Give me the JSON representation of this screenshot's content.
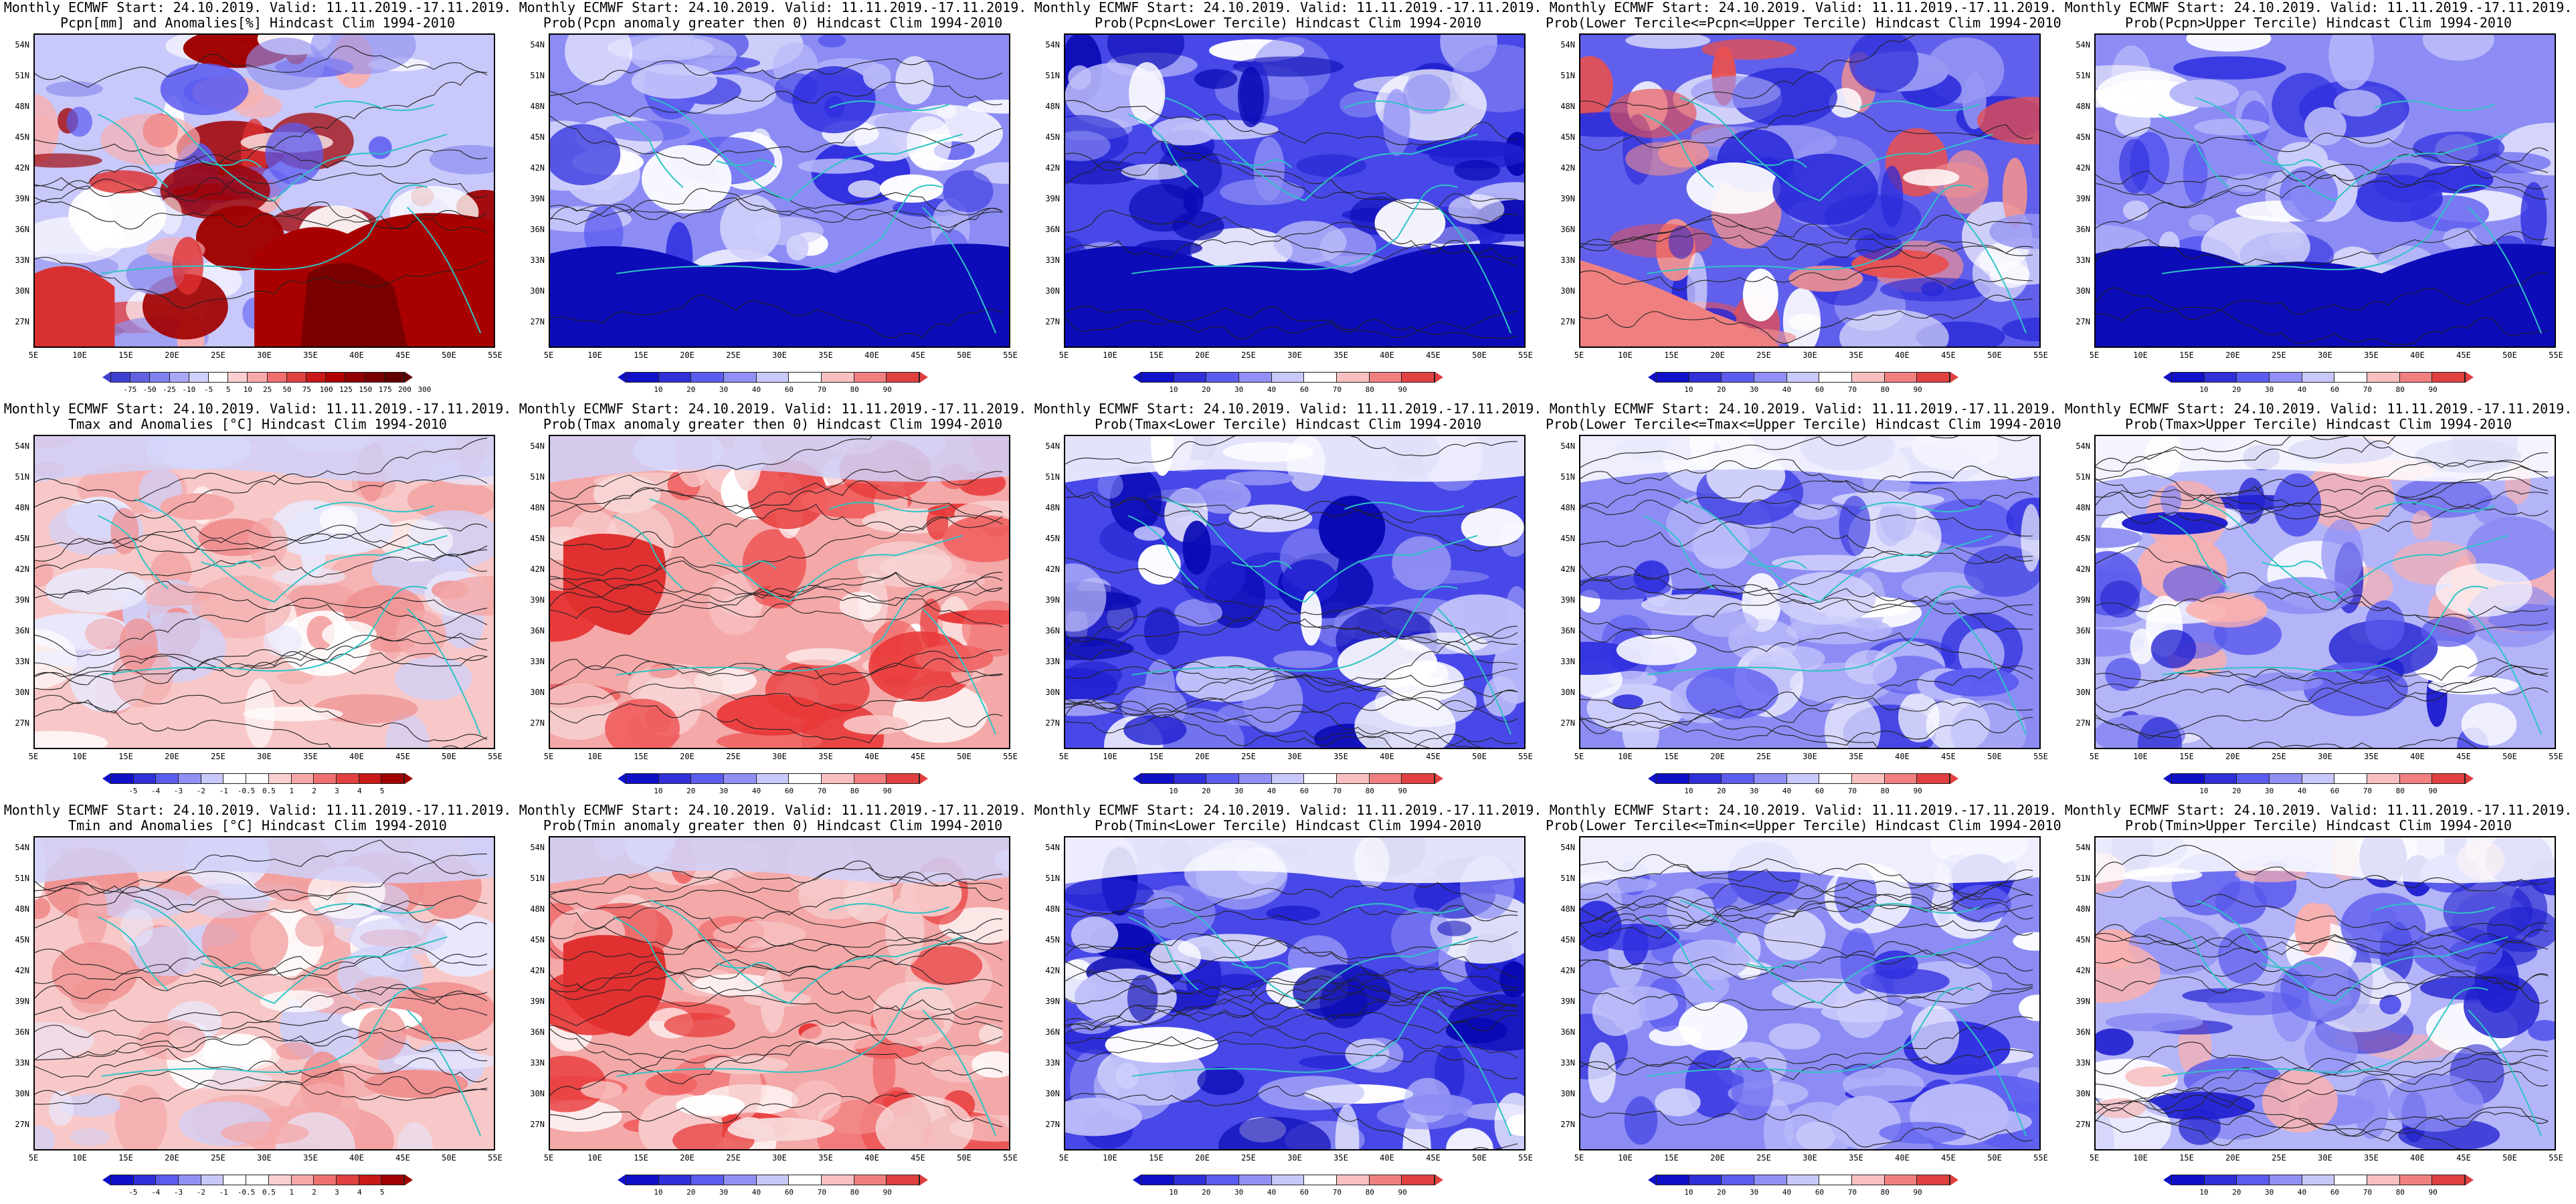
{
  "panels": [
    {
      "id": "p11",
      "title1": "Monthly ECMWF Start: 24.10.2019. Valid: 11.11.2019.-17.11.2019.",
      "title2": "Pcpn[mm] and Anomalies[%] Hindcast Clim 1994-2010",
      "scheme": "anom_pcp",
      "legend": [
        "-75",
        "-50",
        "-25",
        "-10",
        "-5",
        "5",
        "10",
        "25",
        "50",
        "75",
        "100",
        "125",
        "150",
        "175",
        "200",
        "300"
      ]
    },
    {
      "id": "p12",
      "title1": "Monthly ECMWF Start: 24.10.2019. Valid: 11.11.2019.-17.11.2019.",
      "title2": "Prob(Pcpn anomaly greater then 0) Hindcast Clim 1994-2010",
      "scheme": "prob_blue",
      "legend": [
        "10",
        "20",
        "30",
        "40",
        "60",
        "70",
        "80",
        "90"
      ]
    },
    {
      "id": "p13",
      "title1": "Monthly ECMWF Start: 24.10.2019. Valid: 11.11.2019.-17.11.2019.",
      "title2": "Prob(Pcpn<Lower Tercile) Hindcast Clim 1994-2010",
      "scheme": "prob_deepblue",
      "legend": [
        "10",
        "20",
        "30",
        "40",
        "60",
        "70",
        "80",
        "90"
      ]
    },
    {
      "id": "p14",
      "title1": "Monthly ECMWF Start: 24.10.2019. Valid: 11.11.2019.-17.11.2019.",
      "title2": "Prob(Lower Tercile<=Pcpn<=Upper Tercile) Hindcast Clim 1994-2010",
      "scheme": "prob_mixed",
      "legend": [
        "10",
        "20",
        "30",
        "40",
        "60",
        "70",
        "80",
        "90"
      ]
    },
    {
      "id": "p15",
      "title1": "Monthly ECMWF Start: 24.10.2019. Valid: 11.11.2019.-17.11.2019.",
      "title2": "Prob(Pcpn>Upper Tercile) Hindcast Clim 1994-2010",
      "scheme": "prob_blue",
      "legend": [
        "10",
        "20",
        "30",
        "40",
        "60",
        "70",
        "80",
        "90"
      ]
    },
    {
      "id": "p21",
      "title1": "Monthly ECMWF Start: 24.10.2019. Valid: 11.11.2019.-17.11.2019.",
      "title2": "Tmax and Anomalies [°C] Hindcast Clim 1994-2010",
      "scheme": "anom_red",
      "legend": [
        "-5",
        "-4",
        "-3",
        "-2",
        "-1",
        "-0.5",
        "0.5",
        "1",
        "2",
        "3",
        "4",
        "5"
      ]
    },
    {
      "id": "p22",
      "title1": "Monthly ECMWF Start: 24.10.2019. Valid: 11.11.2019.-17.11.2019.",
      "title2": "Prob(Tmax anomaly greater then 0) Hindcast Clim 1994-2010",
      "scheme": "prob_red",
      "legend": [
        "10",
        "20",
        "30",
        "40",
        "60",
        "70",
        "80",
        "90"
      ]
    },
    {
      "id": "p23",
      "title1": "Monthly ECMWF Start: 24.10.2019. Valid: 11.11.2019.-17.11.2019.",
      "title2": "Prob(Tmax<Lower Tercile) Hindcast Clim 1994-2010",
      "scheme": "prob_deepblue",
      "legend": [
        "10",
        "20",
        "30",
        "40",
        "60",
        "70",
        "80",
        "90"
      ]
    },
    {
      "id": "p24",
      "title1": "Monthly ECMWF Start: 24.10.2019. Valid: 11.11.2019.-17.11.2019.",
      "title2": "Prob(Lower Tercile<=Tmax<=Upper Tercile) Hindcast Clim 1994-2010",
      "scheme": "prob_blue",
      "legend": [
        "10",
        "20",
        "30",
        "40",
        "60",
        "70",
        "80",
        "90"
      ]
    },
    {
      "id": "p25",
      "title1": "Monthly ECMWF Start: 24.10.2019. Valid: 11.11.2019.-17.11.2019.",
      "title2": "Prob(Tmax>Upper Tercile) Hindcast Clim 1994-2010",
      "scheme": "prob_light",
      "legend": [
        "10",
        "20",
        "30",
        "40",
        "60",
        "70",
        "80",
        "90"
      ]
    },
    {
      "id": "p31",
      "title1": "Monthly ECMWF Start: 24.10.2019. Valid: 11.11.2019.-17.11.2019.",
      "title2": "Tmin and Anomalies [°C] Hindcast Clim 1994-2010",
      "scheme": "anom_red",
      "legend": [
        "-5",
        "-4",
        "-3",
        "-2",
        "-1",
        "-0.5",
        "0.5",
        "1",
        "2",
        "3",
        "4",
        "5"
      ]
    },
    {
      "id": "p32",
      "title1": "Monthly ECMWF Start: 24.10.2019. Valid: 11.11.2019.-17.11.2019.",
      "title2": "Prob(Tmin anomaly greater then 0) Hindcast Clim 1994-2010",
      "scheme": "prob_red",
      "legend": [
        "10",
        "20",
        "30",
        "40",
        "60",
        "70",
        "80",
        "90"
      ]
    },
    {
      "id": "p33",
      "title1": "Monthly ECMWF Start: 24.10.2019. Valid: 11.11.2019.-17.11.2019.",
      "title2": "Prob(Tmin<Lower Tercile) Hindcast Clim 1994-2010",
      "scheme": "prob_deepblue",
      "legend": [
        "10",
        "20",
        "30",
        "40",
        "60",
        "70",
        "80",
        "90"
      ]
    },
    {
      "id": "p34",
      "title1": "Monthly ECMWF Start: 24.10.2019. Valid: 11.11.2019.-17.11.2019.",
      "title2": "Prob(Lower Tercile<=Tmin<=Upper Tercile) Hindcast Clim 1994-2010",
      "scheme": "prob_blue",
      "legend": [
        "10",
        "20",
        "30",
        "40",
        "60",
        "70",
        "80",
        "90"
      ]
    },
    {
      "id": "p35",
      "title1": "Monthly ECMWF Start: 24.10.2019. Valid: 11.11.2019.-17.11.2019.",
      "title2": "Prob(Tmin>Upper Tercile) Hindcast Clim 1994-2010",
      "scheme": "prob_light",
      "legend": [
        "10",
        "20",
        "30",
        "40",
        "60",
        "70",
        "80",
        "90"
      ]
    }
  ],
  "lat_labels": [
    "54N",
    "51N",
    "48N",
    "45N",
    "42N",
    "39N",
    "36N",
    "33N",
    "30N",
    "27N"
  ],
  "lon_labels": [
    "5E",
    "10E",
    "15E",
    "20E",
    "25E",
    "30E",
    "35E",
    "40E",
    "45E",
    "50E",
    "55E"
  ],
  "colors": {
    "coast": "#2ec4c4",
    "contour": "#222222",
    "deep_blue": "#1010c8",
    "blue": "#5c5cf0",
    "light_blue": "#b4b4f8",
    "white": "#ffffff",
    "light_red": "#f8b0b0",
    "red": "#f04040",
    "dark_red": "#a00000"
  }
}
